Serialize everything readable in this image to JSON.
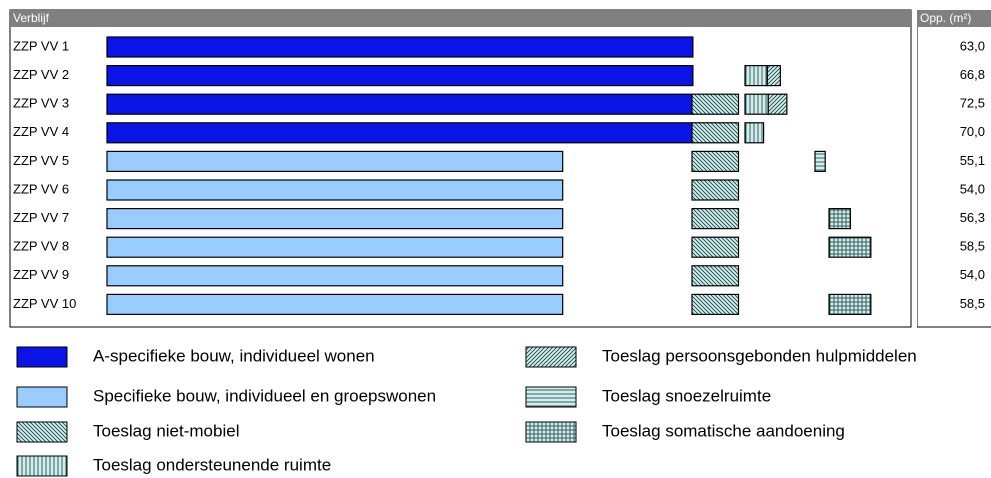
{
  "chart_data": {
    "type": "bar",
    "header": "Verblijf",
    "total_header": "Opp. (m²)",
    "categories": [
      "ZZP VV 1",
      "ZZP VV 2",
      "ZZP VV 3",
      "ZZP VV 4",
      "ZZP VV 5",
      "ZZP VV 6",
      "ZZP VV 7",
      "ZZP VV 8",
      "ZZP VV 9",
      "ZZP VV 10"
    ],
    "series": [
      {
        "name": "A-specifieke bouw, individueel wonen",
        "color": "#0a14e6",
        "values": [
          63.0,
          63.0,
          63.0,
          63.0,
          null,
          null,
          null,
          null,
          null,
          null
        ]
      },
      {
        "name": "Specifieke bouw, individueel en groepswonen",
        "color": "#99ccff",
        "values": [
          null,
          null,
          null,
          null,
          49.0,
          49.0,
          49.0,
          49.0,
          49.0,
          49.0
        ]
      },
      {
        "name": "Toeslag niet-mobiel",
        "pattern": "diagonal-down",
        "values": [
          null,
          null,
          5.0,
          5.0,
          5.0,
          5.0,
          5.0,
          5.0,
          5.0,
          5.0
        ]
      },
      {
        "name": "Toeslag ondersteunende ruimte",
        "pattern": "vertical",
        "values": [
          null,
          2.4,
          2.5,
          2.0,
          null,
          null,
          null,
          null,
          null,
          null
        ]
      },
      {
        "name": "Toeslag persoonsgebonden hulpmiddelen",
        "pattern": "diagonal-up",
        "values": [
          null,
          1.4,
          2.0,
          null,
          null,
          null,
          null,
          null,
          null,
          null
        ]
      },
      {
        "name": "Toeslag snoezelruimte",
        "pattern": "horizontal",
        "values": [
          null,
          null,
          null,
          null,
          1.1,
          null,
          null,
          null,
          null,
          null
        ]
      },
      {
        "name": "Toeslag somatische aandoening",
        "pattern": "grid",
        "values": [
          null,
          null,
          null,
          null,
          null,
          null,
          2.3,
          4.5,
          null,
          4.5
        ]
      }
    ],
    "totals": [
      63.0,
      66.8,
      72.5,
      70.0,
      55.1,
      54.0,
      56.3,
      58.5,
      54.0,
      58.5
    ],
    "value_labels": [
      "63,0",
      "66,8",
      "72,5",
      "70,0",
      "55,1",
      "54,0",
      "56,3",
      "58,5",
      "54,0",
      "58,5"
    ]
  }
}
